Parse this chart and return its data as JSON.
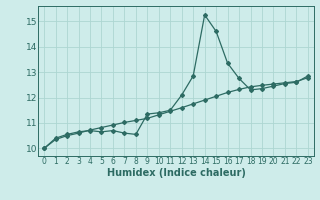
{
  "title": "",
  "xlabel": "Humidex (Indice chaleur)",
  "ylabel": "",
  "bg_color": "#ceecea",
  "line_color": "#2d6b63",
  "grid_color": "#add6d2",
  "xlim": [
    -0.5,
    23.5
  ],
  "ylim": [
    9.7,
    15.6
  ],
  "yticks": [
    10,
    11,
    12,
    13,
    14,
    15
  ],
  "xticks": [
    0,
    1,
    2,
    3,
    4,
    5,
    6,
    7,
    8,
    9,
    10,
    11,
    12,
    13,
    14,
    15,
    16,
    17,
    18,
    19,
    20,
    21,
    22,
    23
  ],
  "curve1_x": [
    0,
    1,
    2,
    3,
    4,
    5,
    6,
    7,
    8,
    9,
    10,
    11,
    12,
    13,
    14,
    15,
    16,
    17,
    18,
    19,
    20,
    21,
    22,
    23
  ],
  "curve1_y": [
    10.0,
    10.4,
    10.55,
    10.65,
    10.7,
    10.65,
    10.7,
    10.6,
    10.55,
    11.35,
    11.4,
    11.5,
    12.1,
    12.85,
    15.25,
    14.6,
    13.35,
    12.75,
    12.3,
    12.35,
    12.45,
    12.55,
    12.6,
    12.85
  ],
  "curve2_x": [
    0,
    1,
    2,
    3,
    4,
    5,
    6,
    7,
    8,
    9,
    10,
    11,
    12,
    13,
    14,
    15,
    16,
    17,
    18,
    19,
    20,
    21,
    22,
    23
  ],
  "curve2_y": [
    10.0,
    10.35,
    10.5,
    10.6,
    10.72,
    10.82,
    10.92,
    11.02,
    11.1,
    11.18,
    11.32,
    11.46,
    11.6,
    11.75,
    11.9,
    12.05,
    12.2,
    12.32,
    12.42,
    12.48,
    12.53,
    12.58,
    12.63,
    12.78
  ],
  "xlabel_fontsize": 7,
  "xlabel_fontweight": "bold",
  "tick_fontsize": 5.5,
  "ytick_fontsize": 6.5,
  "marker": "D",
  "markersize": 2.0,
  "linewidth": 0.9
}
